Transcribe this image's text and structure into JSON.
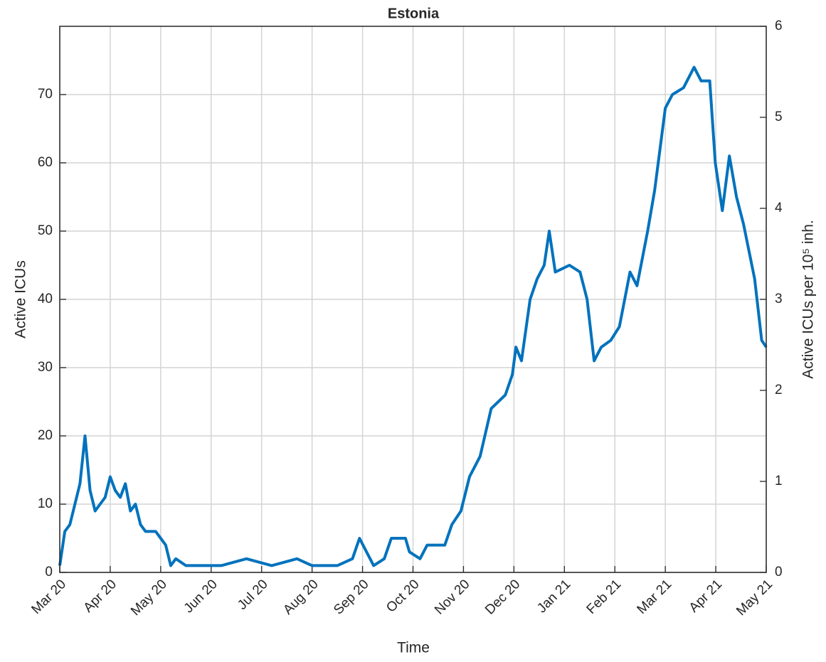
{
  "chart_data": {
    "type": "line",
    "title": "Estonia",
    "xlabel": "Time",
    "ylabel": "Active ICUs",
    "y2label": "Active ICUs per 10⁵ inh.",
    "color": "#0072bd",
    "grid": true,
    "xlim": [
      0,
      14
    ],
    "xticks": [
      {
        "value": 0,
        "label": "Mar 20"
      },
      {
        "value": 1,
        "label": "Apr 20"
      },
      {
        "value": 2,
        "label": "May 20"
      },
      {
        "value": 3,
        "label": "Jun 20"
      },
      {
        "value": 4,
        "label": "Jul 20"
      },
      {
        "value": 5,
        "label": "Aug 20"
      },
      {
        "value": 6,
        "label": "Sep 20"
      },
      {
        "value": 7,
        "label": "Oct 20"
      },
      {
        "value": 8,
        "label": "Nov 20"
      },
      {
        "value": 9,
        "label": "Dec 20"
      },
      {
        "value": 10,
        "label": "Jan 21"
      },
      {
        "value": 11,
        "label": "Feb 21"
      },
      {
        "value": 12,
        "label": "Mar 21"
      },
      {
        "value": 13,
        "label": "Apr 21"
      },
      {
        "value": 14,
        "label": "May 21"
      }
    ],
    "ylim": [
      0,
      80
    ],
    "yticks": [
      0,
      10,
      20,
      30,
      40,
      50,
      60,
      70
    ],
    "y2lim": [
      0,
      6
    ],
    "y2ticks": [
      0,
      1,
      2,
      3,
      4,
      5,
      6
    ],
    "x": [
      0,
      0.1,
      0.2,
      0.3,
      0.4,
      0.5,
      0.6,
      0.7,
      0.8,
      0.9,
      1.0,
      1.1,
      1.2,
      1.3,
      1.4,
      1.5,
      1.6,
      1.7,
      1.9,
      2.0,
      2.1,
      2.2,
      2.3,
      2.5,
      3.0,
      3.2,
      3.7,
      4.2,
      4.7,
      5.0,
      5.5,
      5.8,
      5.94,
      6.08,
      6.22,
      6.43,
      6.57,
      6.85,
      6.93,
      7.14,
      7.28,
      7.63,
      7.77,
      7.95,
      8.12,
      8.33,
      8.55,
      8.83,
      8.97,
      9.04,
      9.15,
      9.32,
      9.46,
      9.6,
      9.7,
      9.82,
      10.1,
      10.31,
      10.45,
      10.59,
      10.73,
      10.92,
      11.09,
      11.3,
      11.44,
      11.65,
      11.79,
      12.0,
      12.14,
      12.36,
      12.57,
      12.71,
      12.88,
      12.99,
      13.13,
      13.27,
      13.41,
      13.55,
      13.77,
      13.91,
      14
    ],
    "values": [
      1,
      6,
      7,
      10,
      13,
      20,
      12,
      9,
      10,
      11,
      14,
      12,
      11,
      13,
      9,
      10,
      7,
      6,
      6,
      5,
      4,
      1,
      2,
      1,
      1,
      1,
      2,
      1,
      2,
      1,
      1,
      2,
      5,
      3,
      1,
      2,
      5,
      5,
      3,
      2,
      4,
      4,
      7,
      9,
      14,
      17,
      24,
      26,
      29,
      33,
      31,
      40,
      43,
      45,
      50,
      44,
      45,
      44,
      40,
      31,
      33,
      34,
      36,
      44,
      42,
      50,
      56,
      68,
      70,
      71,
      74,
      72,
      72,
      60,
      53,
      61,
      55,
      51,
      43,
      34,
      33
    ]
  }
}
